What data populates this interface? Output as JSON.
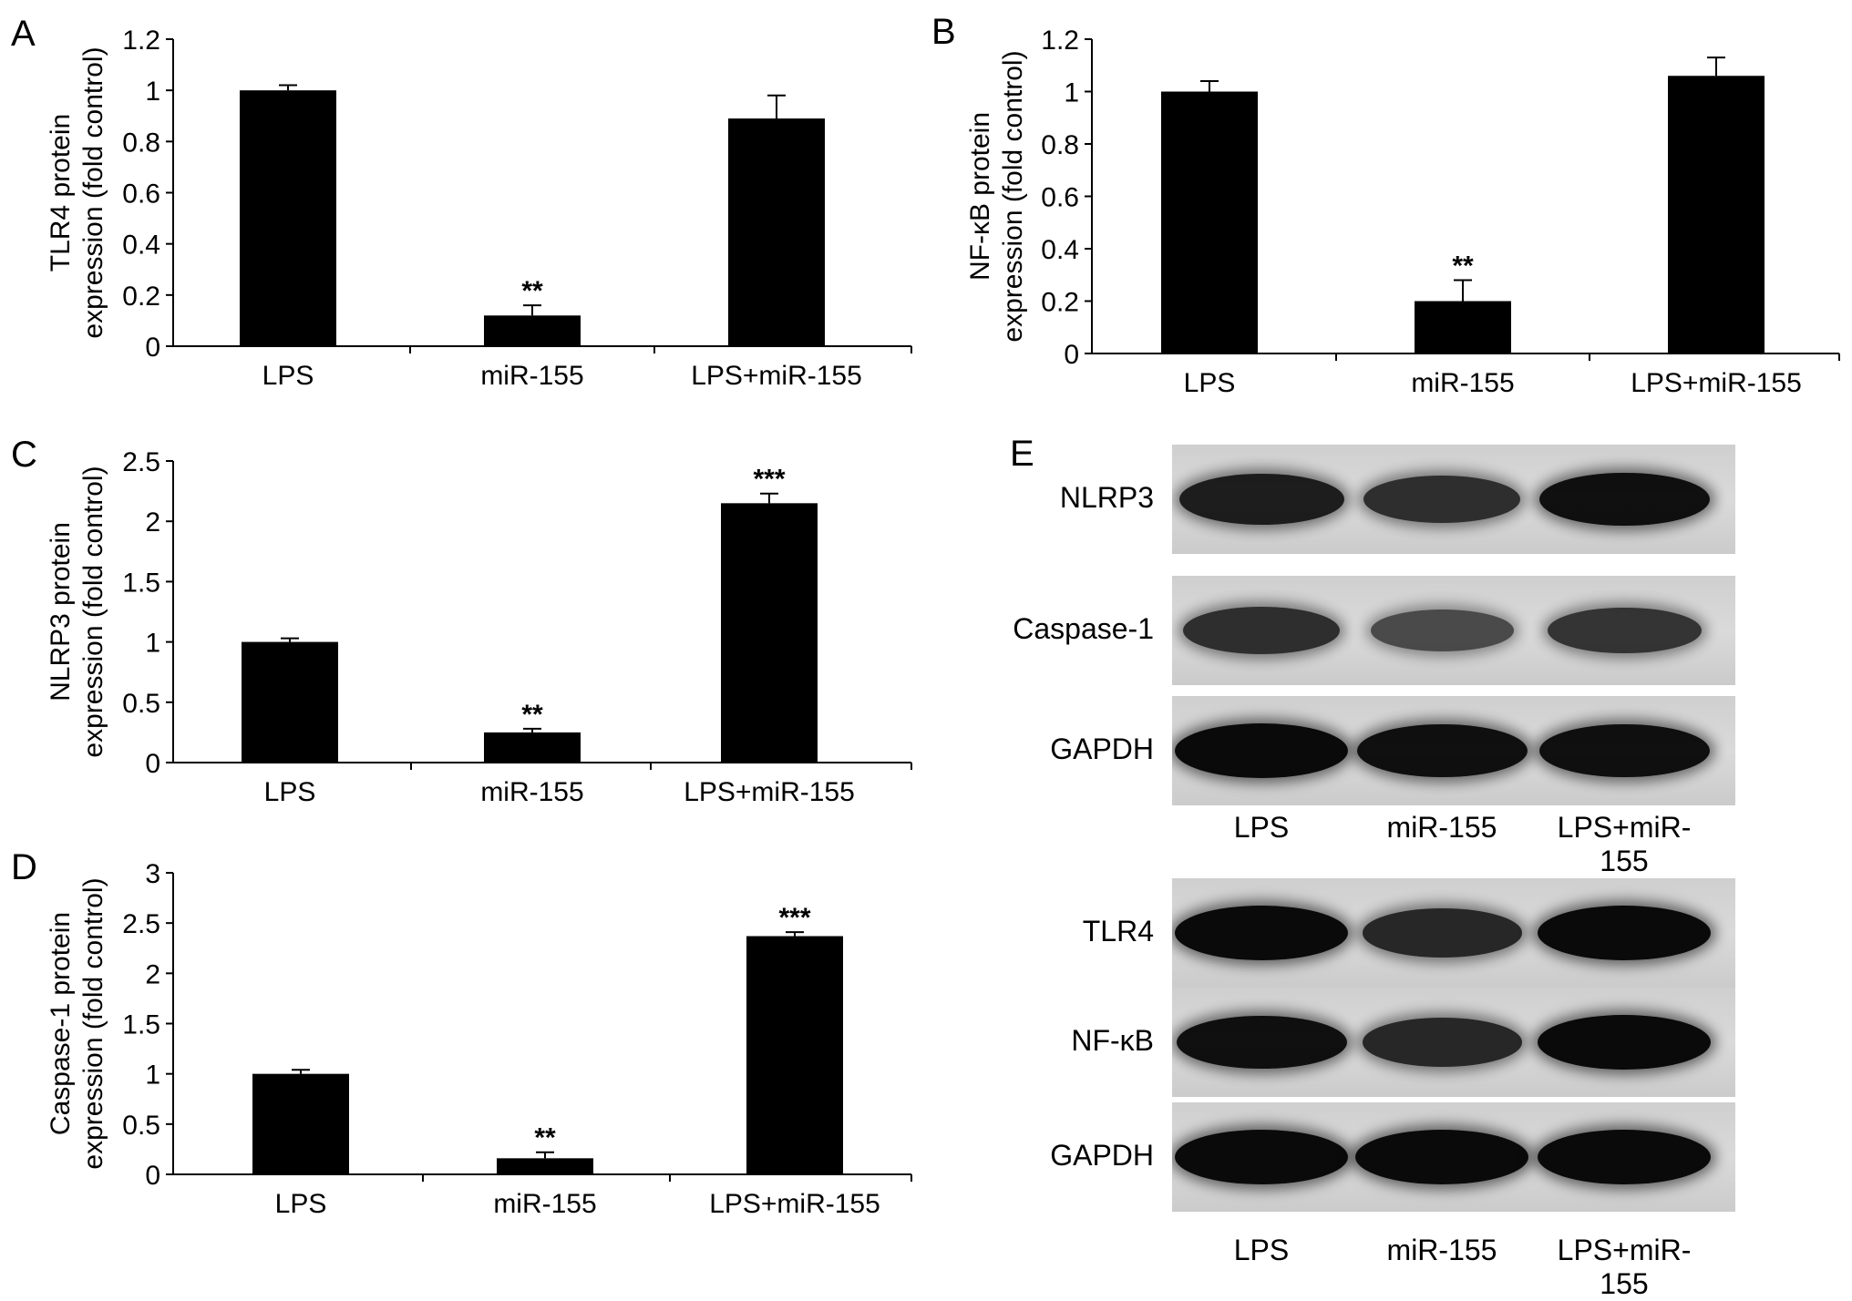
{
  "chart_data": [
    {
      "panel": "A",
      "type": "bar",
      "ylabel": [
        "TLR4 protein",
        "expression (fold control)"
      ],
      "categories": [
        "LPS",
        "miR-155",
        "LPS+miR-155"
      ],
      "values": [
        1.0,
        0.12,
        0.89
      ],
      "errors": [
        0.02,
        0.04,
        0.09
      ],
      "annotations": [
        "",
        "**",
        ""
      ],
      "ylim": [
        0,
        1.2
      ],
      "yticks": [
        "0",
        "0.2",
        "0.4",
        "0.6",
        "0.8",
        "1",
        "1.2"
      ],
      "ytick_values": [
        0,
        0.2,
        0.4,
        0.6,
        0.8,
        1,
        1.2
      ],
      "grid": false
    },
    {
      "panel": "B",
      "type": "bar",
      "ylabel": [
        "NF-κB protein",
        "expression (fold control)"
      ],
      "categories": [
        "LPS",
        "miR-155",
        "LPS+miR-155"
      ],
      "values": [
        1.0,
        0.2,
        1.06
      ],
      "errors": [
        0.04,
        0.08,
        0.07
      ],
      "annotations": [
        "",
        "**",
        ""
      ],
      "ylim": [
        0,
        1.2
      ],
      "yticks": [
        "0",
        "0.2",
        "0.4",
        "0.6",
        "0.8",
        "1",
        "1.2"
      ],
      "ytick_values": [
        0,
        0.2,
        0.4,
        0.6,
        0.8,
        1,
        1.2
      ],
      "grid": false
    },
    {
      "panel": "C",
      "type": "bar",
      "ylabel": [
        "NLRP3 protein",
        "expression (fold control)"
      ],
      "categories": [
        "LPS",
        "miR-155",
        "LPS+miR-155"
      ],
      "values": [
        1.0,
        0.25,
        2.15
      ],
      "errors": [
        0.03,
        0.03,
        0.08
      ],
      "annotations": [
        "",
        "**",
        "***"
      ],
      "ylim": [
        0,
        2.5
      ],
      "yticks": [
        "0",
        "0.5",
        "1",
        "1.5",
        "2",
        "2.5"
      ],
      "ytick_values": [
        0,
        0.5,
        1,
        1.5,
        2,
        2.5
      ],
      "grid": false
    },
    {
      "panel": "D",
      "type": "bar",
      "ylabel": [
        "Caspase-1 protein",
        "expression (fold control)"
      ],
      "categories": [
        "LPS",
        "miR-155",
        "LPS+miR-155"
      ],
      "values": [
        1.0,
        0.16,
        2.37
      ],
      "errors": [
        0.04,
        0.06,
        0.04
      ],
      "annotations": [
        "",
        "**",
        "***"
      ],
      "ylim": [
        0,
        3
      ],
      "yticks": [
        "0",
        "0.5",
        "1",
        "1.5",
        "2",
        "2.5",
        "3"
      ],
      "ytick_values": [
        0,
        0.5,
        1,
        1.5,
        2,
        2.5,
        3
      ],
      "grid": false
    }
  ],
  "blot": {
    "panel": "E",
    "groups": [
      {
        "rows": [
          {
            "label": "NLRP3",
            "intensity": [
              0.85,
              0.7,
              0.95
            ]
          },
          {
            "label": "Caspase-1",
            "intensity": [
              0.7,
              0.45,
              0.65
            ]
          },
          {
            "label": "GAPDH",
            "intensity": [
              1.0,
              0.95,
              0.95
            ]
          }
        ],
        "lanes": [
          "LPS",
          "miR-155",
          "LPS+miR-155"
        ]
      },
      {
        "rows": [
          {
            "label": "TLR4",
            "intensity": [
              1.0,
              0.75,
              1.0
            ]
          },
          {
            "label": "NF-κB",
            "intensity": [
              0.95,
              0.75,
              1.0
            ]
          },
          {
            "label": "GAPDH",
            "intensity": [
              1.0,
              1.0,
              1.0
            ]
          }
        ],
        "lanes": [
          "LPS",
          "miR-155",
          "LPS+miR-155"
        ]
      }
    ]
  }
}
